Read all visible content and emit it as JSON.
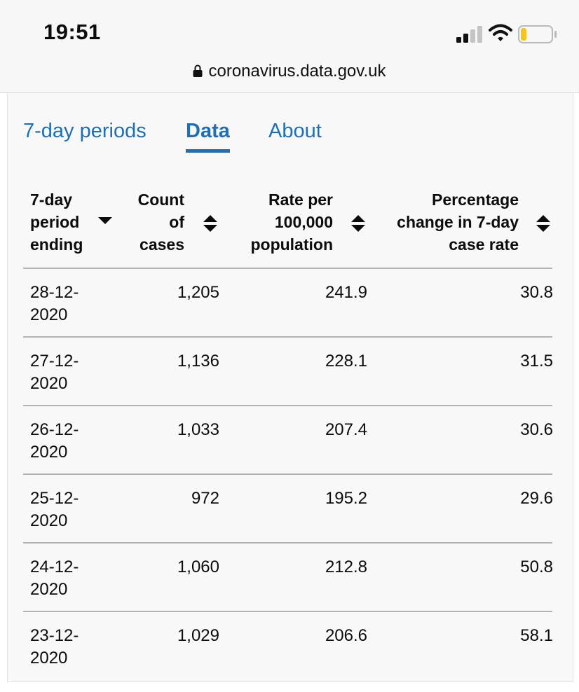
{
  "status_bar": {
    "time": "19:51",
    "signal_icon": "cellular-signal-icon",
    "wifi_icon": "wifi-icon",
    "battery_icon": "battery-low-icon",
    "battery_color": "#f5c518"
  },
  "browser": {
    "url": "coronavirus.data.gov.uk",
    "lock_icon": "lock-icon"
  },
  "tabs": [
    {
      "label": "7-day periods",
      "active": false
    },
    {
      "label": "Data",
      "active": true
    },
    {
      "label": "About",
      "active": false
    }
  ],
  "table": {
    "headers": {
      "period": [
        "7-day",
        "period",
        "ending"
      ],
      "count": [
        "Count",
        "of",
        "cases"
      ],
      "rate": [
        "Rate per",
        "100,000",
        "population"
      ],
      "change": [
        "Percentage",
        "change in 7-day",
        "case rate"
      ]
    },
    "rows": [
      {
        "date_a": "28-12-",
        "date_b": "2020",
        "count": "1,205",
        "rate": "241.9",
        "change": "30.8"
      },
      {
        "date_a": "27-12-",
        "date_b": "2020",
        "count": "1,136",
        "rate": "228.1",
        "change": "31.5"
      },
      {
        "date_a": "26-12-",
        "date_b": "2020",
        "count": "1,033",
        "rate": "207.4",
        "change": "30.6"
      },
      {
        "date_a": "25-12-",
        "date_b": "2020",
        "count": "972",
        "rate": "195.2",
        "change": "29.6"
      },
      {
        "date_a": "24-12-",
        "date_b": "2020",
        "count": "1,060",
        "rate": "212.8",
        "change": "50.8"
      },
      {
        "date_a": "23-12-",
        "date_b": "2020",
        "count": "1,029",
        "rate": "206.6",
        "change": "58.1"
      }
    ]
  },
  "colors": {
    "link": "#1d70b8",
    "text": "#0b0c0c",
    "divider": "#b1b4b6"
  }
}
